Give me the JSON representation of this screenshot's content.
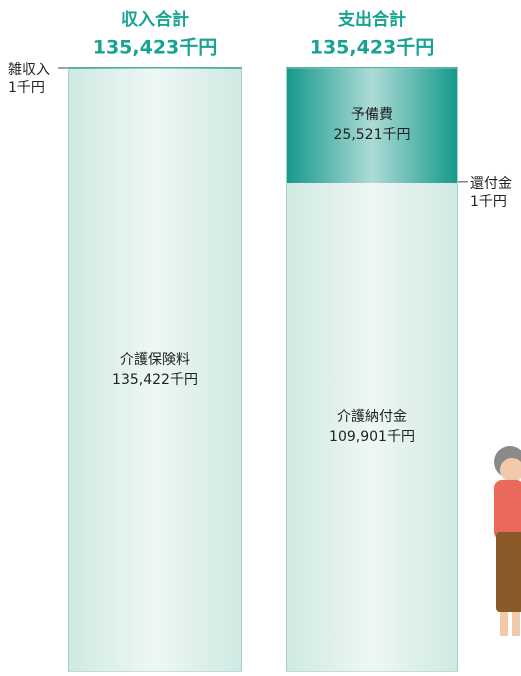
{
  "chart_data": {
    "type": "bar",
    "stacked": true,
    "title_color": "#17a392",
    "columns": [
      {
        "title": "収入合計",
        "total": 135423,
        "total_label": "135,423千円",
        "segments": [
          {
            "name": "介護保険料",
            "value": 135422,
            "value_label": "135,422千円",
            "color": "#cfe9e2"
          },
          {
            "name": "雑収入",
            "value": 1,
            "value_label": "1千円",
            "color": "#14998a"
          }
        ]
      },
      {
        "title": "支出合計",
        "total": 135423,
        "total_label": "135,423千円",
        "segments": [
          {
            "name": "介護納付金",
            "value": 109901,
            "value_label": "109,901千円",
            "color": "#cfe9e2"
          },
          {
            "name": "還付金",
            "value": 1,
            "value_label": "1千円",
            "color": "#14998a"
          },
          {
            "name": "予備費",
            "value": 25521,
            "value_label": "25,521千円",
            "color": "#14998a"
          }
        ]
      }
    ]
  }
}
